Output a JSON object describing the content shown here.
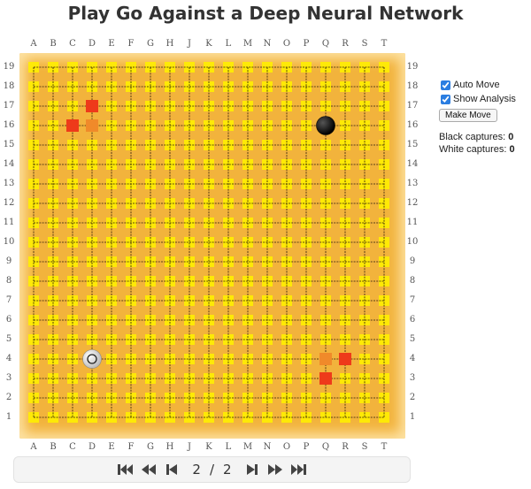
{
  "title": "Play Go Against a Deep Neural Network",
  "board": {
    "size": 19,
    "columns": [
      "A",
      "B",
      "C",
      "D",
      "E",
      "F",
      "G",
      "H",
      "J",
      "K",
      "L",
      "M",
      "N",
      "O",
      "P",
      "Q",
      "R",
      "S",
      "T"
    ],
    "rows": [
      "19",
      "18",
      "17",
      "16",
      "15",
      "14",
      "13",
      "12",
      "11",
      "10",
      "9",
      "8",
      "7",
      "6",
      "5",
      "4",
      "3",
      "2",
      "1"
    ],
    "stones": [
      {
        "color": "black",
        "col": "Q",
        "row": 16
      },
      {
        "color": "white",
        "col": "D",
        "row": 4,
        "last_move": true
      }
    ],
    "analysis_strong": [
      {
        "col": "D",
        "row": 17
      },
      {
        "col": "C",
        "row": 16
      },
      {
        "col": "R",
        "row": 4
      },
      {
        "col": "Q",
        "row": 3
      }
    ],
    "analysis_medium": [
      {
        "col": "D",
        "row": 16
      },
      {
        "col": "Q",
        "row": 4
      }
    ],
    "colors": {
      "board": "#f2b33c",
      "marker": "#ffee00",
      "strong": "#ee3a1a",
      "medium": "#f08a2a"
    }
  },
  "controls": {
    "auto_move_label": "Auto Move",
    "auto_move_checked": true,
    "show_analysis_label": "Show Analysis",
    "show_analysis_checked": true,
    "make_move_label": "Make Move"
  },
  "captures": {
    "black_label": "Black captures:",
    "black_value": "0",
    "white_label": "White captures:",
    "white_value": "0"
  },
  "navigation": {
    "current": "2",
    "separator": "/",
    "total": "2",
    "icons": [
      "first-icon",
      "back-fast-icon",
      "back-icon",
      "forward-icon",
      "forward-fast-icon",
      "last-icon"
    ]
  }
}
